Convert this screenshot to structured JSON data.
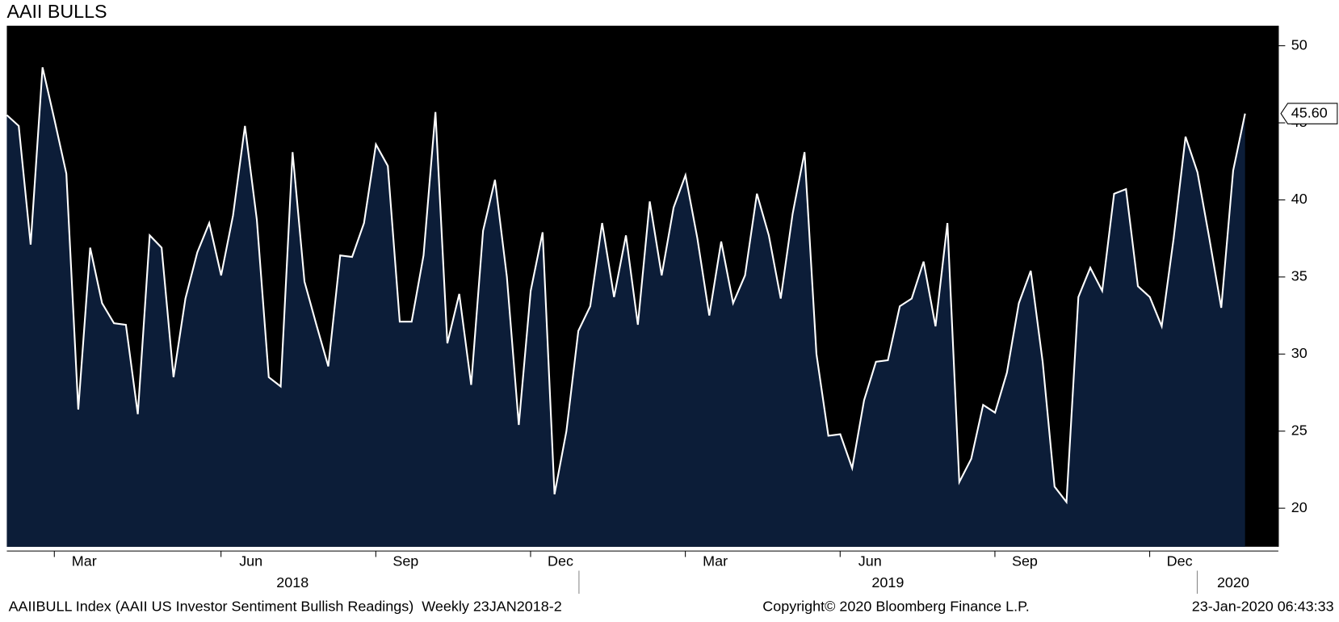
{
  "chart_data": {
    "type": "area",
    "title": "AAII BULLS",
    "series": [
      {
        "name": "AAIIBULL Index",
        "color": "#ffffff",
        "fill": "#0c1d38",
        "values": [
          45.5,
          44.8,
          37.1,
          48.6,
          45.2,
          41.7,
          26.4,
          36.9,
          33.3,
          32.0,
          31.9,
          26.1,
          37.7,
          36.9,
          28.5,
          33.6,
          36.6,
          38.5,
          35.1,
          39.0,
          44.8,
          38.7,
          28.5,
          27.9,
          43.1,
          34.7,
          31.9,
          29.2,
          36.4,
          36.3,
          38.5,
          43.6,
          42.2,
          32.1,
          32.1,
          36.4,
          45.7,
          30.7,
          33.9,
          28.0,
          38.0,
          41.3,
          35.0,
          25.4,
          34.1,
          37.9,
          20.9,
          25.0,
          31.5,
          33.1,
          38.5,
          33.7,
          37.7,
          31.9,
          39.9,
          35.1,
          39.5,
          41.6,
          37.5,
          32.5,
          37.3,
          33.3,
          35.1,
          40.4,
          37.7,
          33.6,
          39.1,
          43.1,
          30.0,
          24.7,
          24.8,
          22.6,
          27.0,
          29.5,
          29.6,
          33.1,
          33.6,
          36.0,
          31.8,
          38.5,
          21.7,
          23.2,
          26.7,
          26.2,
          28.8,
          33.3,
          35.4,
          29.5,
          21.4,
          20.4,
          33.7,
          35.6,
          34.1,
          40.4,
          40.7,
          34.4,
          33.7,
          31.8,
          37.5,
          44.1,
          41.8,
          37.5,
          33.0,
          41.9,
          45.6
        ],
        "value_labels": [
          null,
          null,
          null,
          null,
          null,
          null,
          null,
          null,
          null,
          null,
          null,
          null,
          null,
          null,
          null,
          null,
          null,
          null,
          null,
          null,
          null,
          null,
          null,
          null,
          null,
          null,
          null,
          null,
          null,
          null,
          null,
          null,
          null,
          null,
          null,
          null,
          null,
          null,
          null,
          null,
          null,
          null,
          null,
          null,
          null,
          null,
          null,
          null,
          null,
          null,
          null,
          null,
          null,
          null,
          null,
          null,
          null,
          null,
          null,
          null,
          null,
          null,
          null,
          null,
          null,
          null,
          null,
          null,
          null,
          null,
          null,
          null,
          null,
          null,
          null,
          null,
          null,
          null,
          null,
          null,
          null,
          null,
          null,
          null,
          null,
          null,
          null,
          null,
          null,
          null,
          null,
          null,
          null,
          null,
          null,
          null,
          null,
          null,
          null,
          null,
          null,
          null,
          null,
          null,
          "45.60"
        ]
      }
    ],
    "categories": [
      null,
      null,
      null,
      null,
      null,
      null,
      "Mar",
      null,
      null,
      null,
      null,
      null,
      null,
      null,
      null,
      null,
      null,
      null,
      null,
      null,
      "Jun",
      null,
      null,
      null,
      null,
      null,
      null,
      null,
      null,
      null,
      null,
      null,
      null,
      "Sep",
      null,
      null,
      null,
      null,
      null,
      null,
      null,
      null,
      null,
      null,
      null,
      null,
      "Dec",
      null,
      null,
      null,
      null,
      null,
      null,
      null,
      null,
      null,
      null,
      null,
      null,
      "Mar",
      null,
      null,
      null,
      null,
      null,
      null,
      null,
      null,
      null,
      null,
      null,
      null,
      "Jun",
      null,
      null,
      null,
      null,
      null,
      null,
      null,
      null,
      null,
      null,
      null,
      null,
      "Sep",
      null,
      null,
      null,
      null,
      null,
      null,
      null,
      null,
      null,
      null,
      null,
      null,
      "Dec",
      null,
      null,
      null,
      null,
      null,
      null
    ],
    "years": [
      null,
      null,
      null,
      null,
      null,
      null,
      null,
      null,
      null,
      null,
      null,
      null,
      null,
      null,
      null,
      null,
      null,
      null,
      null,
      null,
      null,
      null,
      null,
      null,
      "2018",
      null,
      null,
      null,
      null,
      null,
      null,
      null,
      null,
      null,
      null,
      null,
      null,
      null,
      null,
      null,
      null,
      null,
      null,
      null,
      null,
      null,
      null,
      null,
      null,
      null,
      null,
      null,
      null,
      null,
      null,
      null,
      null,
      null,
      null,
      null,
      null,
      null,
      null,
      null,
      null,
      null,
      null,
      null,
      null,
      null,
      null,
      null,
      null,
      null,
      "2019",
      null,
      null,
      null,
      null,
      null,
      null,
      null,
      null,
      null,
      null,
      null,
      null,
      null,
      null,
      null,
      null,
      null,
      null,
      null,
      null,
      null,
      null,
      null,
      null,
      null,
      null,
      null,
      null,
      "2020",
      null
    ],
    "ylim": [
      17.5,
      51.3
    ],
    "yticks": [
      20,
      25,
      30,
      35,
      40,
      45,
      50
    ],
    "footer": [
      "AAIIBULL Index (AAII US Investor Sentiment Bullish Readings)  Weekly 23JAN2018-2",
      "Copyright© 2020 Bloomberg Finance L.P.",
      "23-Jan-2020 06:43:33"
    ]
  }
}
